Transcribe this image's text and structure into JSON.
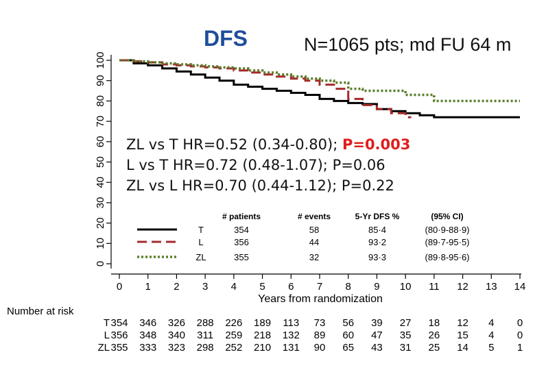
{
  "chart_data": {
    "type": "line",
    "title": "DFS",
    "subtitle": "N=1065 pts; md FU 64 m",
    "xlabel": "Years from randomization",
    "ylabel": "",
    "xlim": [
      0,
      14
    ],
    "ylim": [
      0,
      100
    ],
    "x_ticks": [
      "0",
      "1",
      "2",
      "3",
      "4",
      "5",
      "6",
      "7",
      "8",
      "9",
      "10",
      "11",
      "12",
      "13",
      "14"
    ],
    "y_ticks": [
      "0",
      "10",
      "20",
      "30",
      "40",
      "50",
      "60",
      "70",
      "80",
      "90",
      "100"
    ],
    "series": [
      {
        "name": "T",
        "color": "#000000",
        "style": "solid",
        "x": [
          0,
          0.5,
          1,
          1.5,
          2,
          2.5,
          3,
          3.5,
          4,
          4.5,
          5,
          5.5,
          6,
          6.5,
          7,
          7.5,
          8,
          8.5,
          9,
          9.5,
          10,
          10.5,
          11,
          11.5,
          12,
          12.5,
          13,
          13.5,
          14
        ],
        "y": [
          100,
          98.5,
          97.5,
          96,
          94.5,
          93,
          91.5,
          90,
          88,
          87,
          86,
          85,
          84,
          83,
          81,
          80,
          79,
          78.5,
          76,
          75,
          74,
          73,
          72,
          72,
          72,
          72,
          72,
          72,
          72
        ]
      },
      {
        "name": "L",
        "color": "#a52a2a",
        "style": "dashed",
        "x": [
          0,
          0.5,
          1,
          1.5,
          2,
          2.5,
          3,
          3.5,
          4,
          4.5,
          5,
          5.5,
          6,
          6.5,
          7,
          7.5,
          8,
          8.5,
          9,
          9.5,
          10,
          10.2
        ],
        "y": [
          100,
          99.5,
          99,
          98,
          97.5,
          97,
          96.5,
          96,
          95,
          94,
          93,
          92,
          91,
          90,
          88,
          86,
          81,
          78,
          76,
          74,
          72,
          72
        ]
      },
      {
        "name": "ZL",
        "color": "#5a7d2a",
        "style": "dotted",
        "x": [
          0,
          0.5,
          1,
          1.5,
          2,
          2.5,
          3,
          3.5,
          4,
          4.5,
          5,
          5.5,
          6,
          6.5,
          7,
          7.5,
          8,
          8.5,
          9,
          9.5,
          10,
          10.5,
          11,
          11.5,
          12,
          12.5,
          13,
          13.5,
          14
        ],
        "y": [
          100,
          99.5,
          99,
          98.5,
          98,
          97.5,
          97,
          96.5,
          96,
          95,
          94,
          93,
          92,
          91,
          90,
          89,
          86,
          85,
          85,
          85,
          83,
          83,
          80,
          80,
          80,
          80,
          80,
          80,
          80
        ]
      }
    ],
    "annotations": [
      {
        "text": "ZL vs T HR=0.52 (0.34-0.80); ",
        "p_value": "P=0.003"
      },
      {
        "text": "L vs T HR=0.72 (0.48-1.07); P=0.06"
      },
      {
        "text": "ZL vs L HR=0.70 (0.44-1.12); P=0.22"
      }
    ],
    "legend_table": {
      "headers": [
        "# patients",
        "# events",
        "5-Yr DFS %",
        "(95% CI)"
      ],
      "rows": [
        {
          "label": "T",
          "patients": "354",
          "events": "58",
          "dfs": "85·4",
          "ci": "(80·9-88·9)"
        },
        {
          "label": "L",
          "patients": "356",
          "events": "44",
          "dfs": "93·2",
          "ci": "(89·7-95·5)"
        },
        {
          "label": "ZL",
          "patients": "355",
          "events": "32",
          "dfs": "93·3",
          "ci": "(89·8-95·6)"
        }
      ]
    },
    "risk_table": {
      "title": "Number at risk",
      "rows": [
        {
          "label": "T",
          "values": [
            "354",
            "346",
            "326",
            "288",
            "226",
            "189",
            "113",
            "73",
            "56",
            "39",
            "27",
            "18",
            "12",
            "4",
            "0"
          ]
        },
        {
          "label": "L",
          "values": [
            "356",
            "348",
            "340",
            "311",
            "259",
            "218",
            "132",
            "89",
            "60",
            "47",
            "35",
            "26",
            "15",
            "4",
            "0"
          ]
        },
        {
          "label": "ZL",
          "values": [
            "355",
            "333",
            "323",
            "298",
            "252",
            "210",
            "131",
            "90",
            "65",
            "43",
            "31",
            "25",
            "14",
            "5",
            "1"
          ]
        }
      ]
    }
  }
}
